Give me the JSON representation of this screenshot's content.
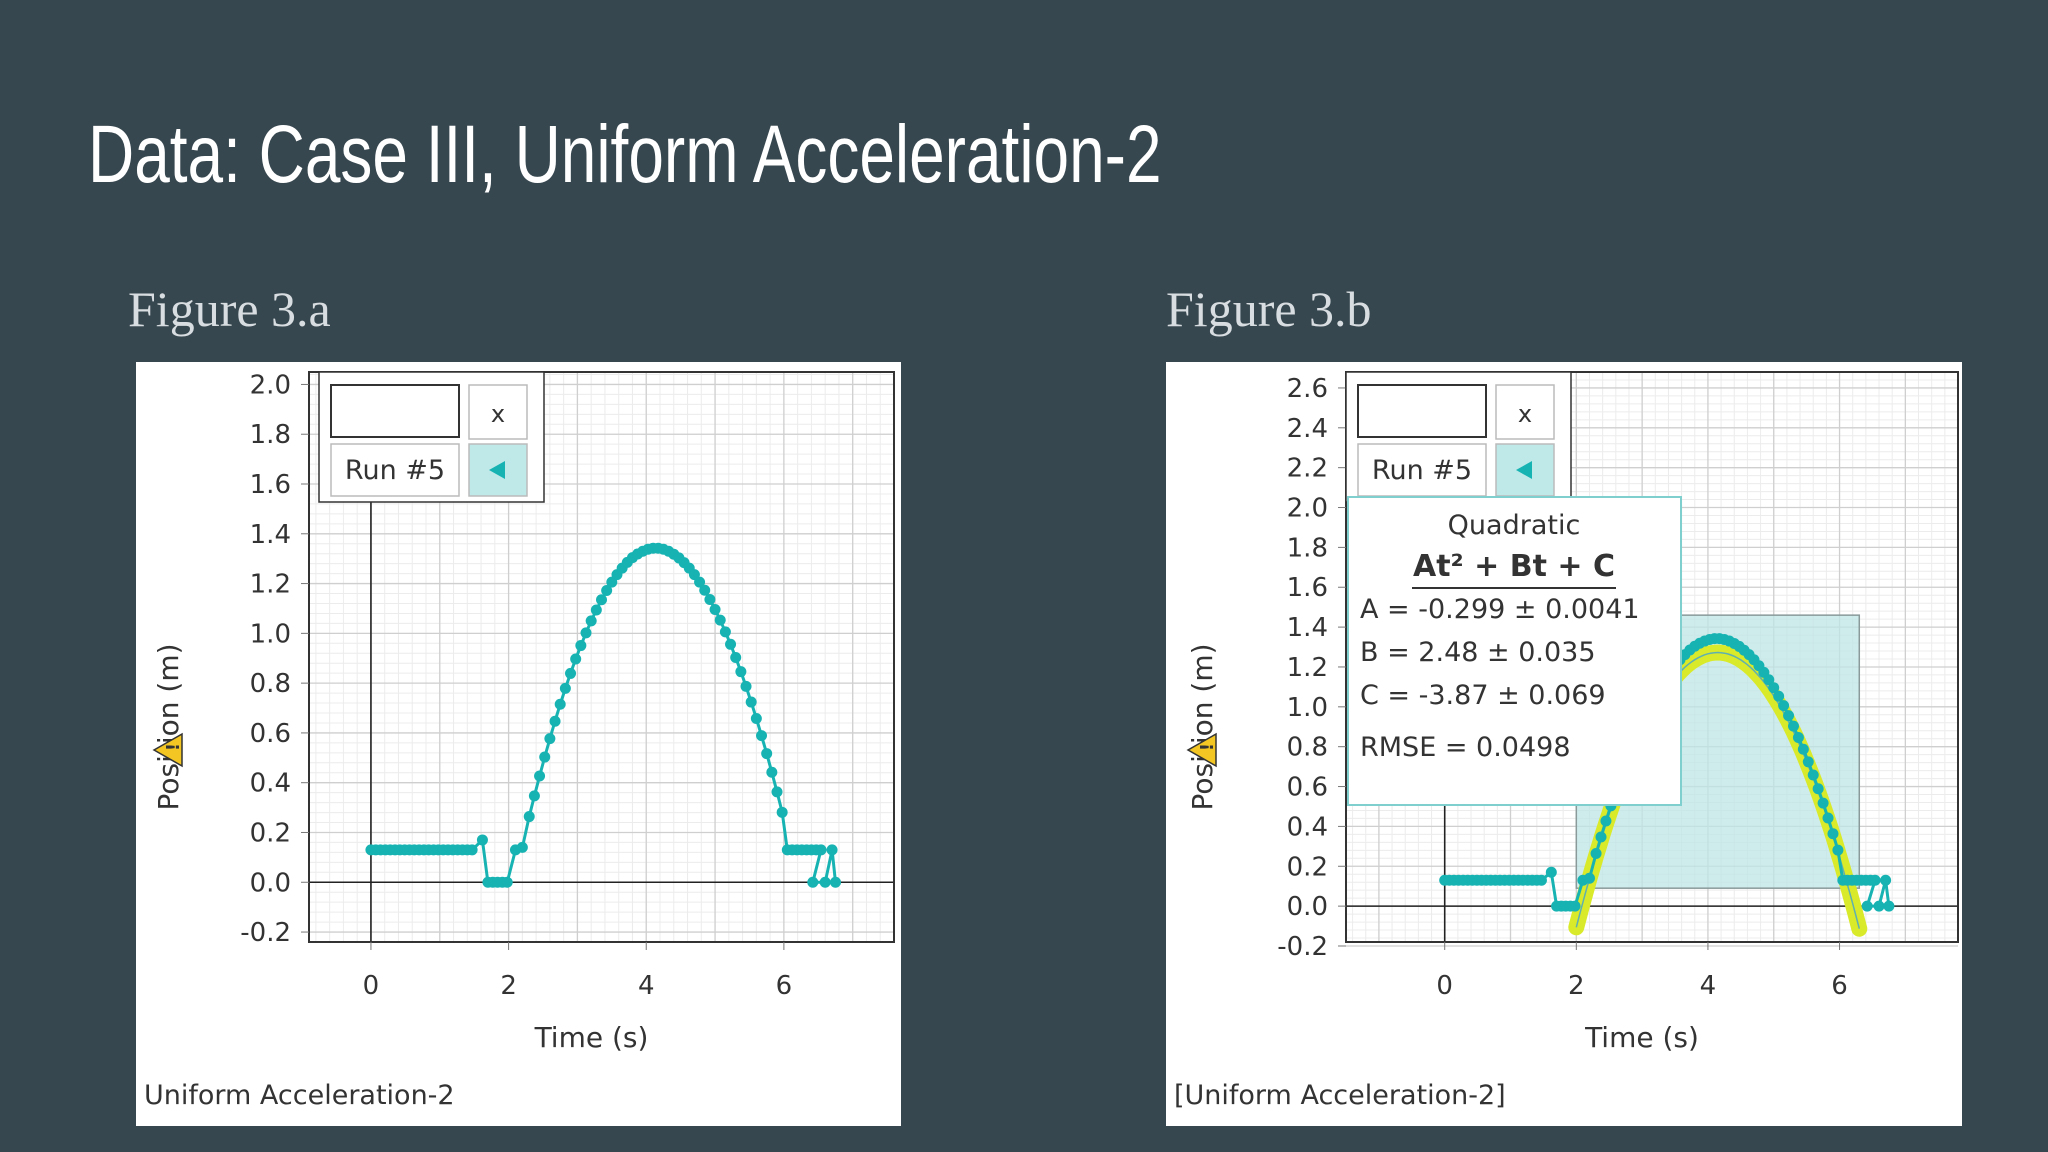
{
  "slide": {
    "title": "Data: Case III, Uniform Acceleration-2"
  },
  "figures": [
    {
      "caption": "Figure 3.a",
      "footer": "Uniform Acceleration-2",
      "run_label": "Run #5",
      "close_label": "x"
    },
    {
      "caption": "Figure 3.b",
      "footer": "[Uniform Acceleration-2]",
      "run_label": "Run #5",
      "close_label": "x",
      "fit": {
        "title": "Quadratic",
        "equation": "At² + Bt + C",
        "A": "A = -0.299 ± 0.0041",
        "B": "B = 2.48     ± 0.035",
        "C": "C = -3.87    ± 0.069",
        "rmse": "RMSE = 0.0498"
      }
    }
  ],
  "colors": {
    "background": "#37474f",
    "series": "#17b3b3",
    "fit_curve": "#d9ea2a",
    "fit_region": "#bfe5e5"
  },
  "chart_data": [
    {
      "type": "scatter",
      "xlabel": "Time (s)",
      "ylabel": "Position (m)",
      "xlim": [
        -0.9,
        7.6
      ],
      "ylim": [
        -0.24,
        2.05
      ],
      "xticks": [
        0,
        2,
        4,
        6
      ],
      "yticks": [
        -0.2,
        0.0,
        0.2,
        0.4,
        0.6,
        0.8,
        1.0,
        1.2,
        1.4,
        1.6,
        1.8,
        2.0
      ],
      "grid": true,
      "legend": "top-left",
      "series": [
        {
          "name": "Run #5",
          "x": [],
          "y": []
        }
      ]
    },
    {
      "type": "scatter",
      "xlabel": "Time (s)",
      "ylabel": "Position (m)",
      "xlim": [
        -1.5,
        7.8
      ],
      "ylim": [
        -0.18,
        2.68
      ],
      "xticks": [
        0,
        2,
        4,
        6
      ],
      "yticks": [
        -0.2,
        0.0,
        0.2,
        0.4,
        0.6,
        0.8,
        1.0,
        1.2,
        1.4,
        1.6,
        1.8,
        2.0,
        2.2,
        2.4,
        2.6
      ],
      "ytick_labels": [
        "-0.2",
        "0.0",
        "0.2",
        "0.4",
        "0.6",
        "0.8",
        "1.0",
        "1.2",
        "1.4",
        "1.6",
        "1.8",
        "2.0",
        "2.2",
        "2.4",
        "2.6"
      ],
      "grid": true,
      "legend": "top-left",
      "fit": {
        "model": "quadratic",
        "A": -0.299,
        "B": 2.48,
        "C": -3.87,
        "x_range": [
          2.0,
          6.3
        ]
      },
      "series": [
        {
          "name": "Run #5",
          "x": [],
          "y": []
        }
      ]
    }
  ]
}
